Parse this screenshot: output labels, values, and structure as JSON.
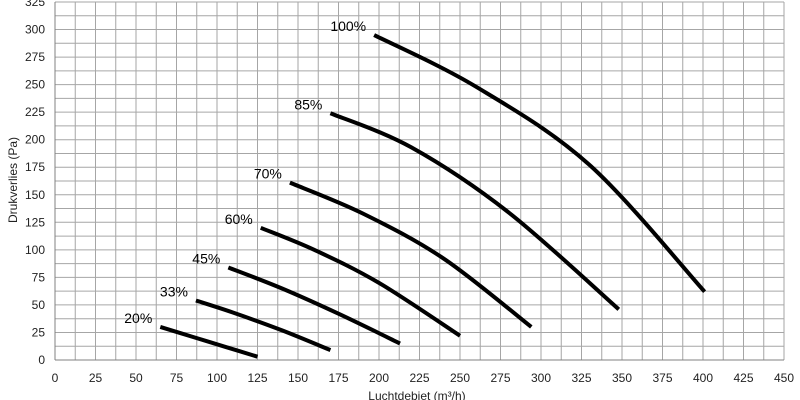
{
  "chart_data": {
    "type": "line",
    "title": "",
    "xlabel": "Luchtdebiet (m³/h)",
    "ylabel": "Drukverlies (Pa)",
    "xlim": [
      0,
      450
    ],
    "ylim": [
      0,
      325
    ],
    "x_ticks": [
      0,
      25,
      50,
      75,
      100,
      125,
      150,
      175,
      200,
      225,
      250,
      275,
      300,
      325,
      350,
      375,
      400,
      425,
      450
    ],
    "y_ticks": [
      0,
      25,
      50,
      75,
      100,
      125,
      150,
      175,
      200,
      225,
      250,
      275,
      300,
      325
    ],
    "grid": true,
    "legend": "none",
    "series": [
      {
        "name": "20%",
        "points": [
          [
            65,
            30
          ],
          [
            85,
            21
          ],
          [
            105,
            12
          ],
          [
            125,
            3
          ]
        ]
      },
      {
        "name": "33%",
        "points": [
          [
            87,
            54
          ],
          [
            110,
            43
          ],
          [
            140,
            27
          ],
          [
            170,
            9
          ]
        ]
      },
      {
        "name": "45%",
        "points": [
          [
            107,
            84
          ],
          [
            140,
            65
          ],
          [
            175,
            42
          ],
          [
            213,
            15
          ]
        ]
      },
      {
        "name": "60%",
        "points": [
          [
            127,
            120
          ],
          [
            160,
            100
          ],
          [
            200,
            70
          ],
          [
            250,
            22
          ]
        ]
      },
      {
        "name": "70%",
        "points": [
          [
            145,
            161
          ],
          [
            190,
            133
          ],
          [
            240,
            92
          ],
          [
            294,
            30
          ]
        ]
      },
      {
        "name": "85%",
        "points": [
          [
            170,
            224
          ],
          [
            220,
            193
          ],
          [
            280,
            134
          ],
          [
            348,
            46
          ]
        ]
      },
      {
        "name": "100%",
        "points": [
          [
            197,
            295
          ],
          [
            260,
            248
          ],
          [
            330,
            177
          ],
          [
            401,
            62
          ]
        ]
      }
    ]
  }
}
